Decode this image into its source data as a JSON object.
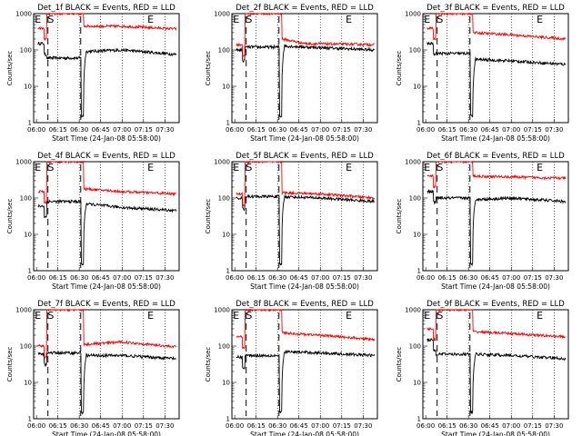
{
  "chart_data": [
    {
      "type": "line",
      "title": "Det_1f BLACK = Events, RED = LLD",
      "xlabel": "Start Time (24-Jan-08 05:58:00)",
      "ylabel": "Counts/sec",
      "yscale": "log",
      "ylim": [
        1,
        1000
      ],
      "x_ticks": [
        "06:00",
        "06:15",
        "06:30",
        "06:45",
        "07:00",
        "07:15",
        "07:30"
      ],
      "y_ticks": [
        "1",
        "10",
        "100",
        "1000"
      ],
      "grid": "dotted vertical",
      "markers": [
        {
          "label": "E",
          "time": "06:01"
        },
        {
          "label": "S",
          "time": "06:10"
        },
        {
          "label": "E",
          "time": "07:20"
        }
      ],
      "series": [
        {
          "color": "#000000",
          "levels": [
            {
              "t": "06:01",
              "v": 150
            },
            {
              "t": "06:07",
              "v": 60
            },
            {
              "t": "06:33",
              "v": 90
            },
            {
              "t": "07:00",
              "v": 100
            },
            {
              "t": "07:38",
              "v": 75
            }
          ]
        },
        {
          "color": "#ff0000",
          "levels": [
            {
              "t": "06:01",
              "v": 400
            },
            {
              "t": "06:07",
              "v": 1000
            },
            {
              "t": "06:33",
              "v": 450
            },
            {
              "t": "07:00",
              "v": 450
            },
            {
              "t": "07:38",
              "v": 380
            }
          ]
        }
      ]
    },
    {
      "type": "line",
      "title": "Det_2f BLACK = Events, RED = LLD",
      "xlabel": "Start Time (24-Jan-08 05:58:00)",
      "ylabel": "Counts/sec",
      "yscale": "log",
      "ylim": [
        1,
        1000
      ],
      "x_ticks": [
        "06:00",
        "06:15",
        "06:30",
        "06:45",
        "07:00",
        "07:15",
        "07:30"
      ],
      "y_ticks": [
        "1",
        "10",
        "100",
        "1000"
      ],
      "grid": "dotted vertical",
      "markers": [
        {
          "label": "E",
          "time": "06:01"
        },
        {
          "label": "S",
          "time": "06:10"
        },
        {
          "label": "E",
          "time": "07:20"
        }
      ],
      "series": [
        {
          "color": "#000000",
          "levels": [
            {
              "t": "06:01",
              "v": 100
            },
            {
              "t": "06:07",
              "v": 120
            },
            {
              "t": "06:33",
              "v": 130
            },
            {
              "t": "06:50",
              "v": 120
            },
            {
              "t": "07:38",
              "v": 100
            }
          ]
        },
        {
          "color": "#ff0000",
          "levels": [
            {
              "t": "06:01",
              "v": 140
            },
            {
              "t": "06:07",
              "v": 1000
            },
            {
              "t": "06:33",
              "v": 200
            },
            {
              "t": "06:50",
              "v": 150
            },
            {
              "t": "07:38",
              "v": 140
            }
          ]
        }
      ]
    },
    {
      "type": "line",
      "title": "Det_3f BLACK = Events, RED = LLD",
      "xlabel": "Start Time (24-Jan-08 05:58:00)",
      "ylabel": "Counts/sec",
      "yscale": "log",
      "ylim": [
        1,
        1000
      ],
      "x_ticks": [
        "06:00",
        "06:15",
        "06:30",
        "06:45",
        "07:00",
        "07:15",
        "07:30"
      ],
      "y_ticks": [
        "1",
        "10",
        "100",
        "1000"
      ],
      "grid": "dotted vertical",
      "markers": [
        {
          "label": "E",
          "time": "06:01"
        },
        {
          "label": "S",
          "time": "06:10"
        },
        {
          "label": "E",
          "time": "07:20"
        }
      ],
      "series": [
        {
          "color": "#000000",
          "levels": [
            {
              "t": "06:01",
              "v": 150
            },
            {
              "t": "06:07",
              "v": 80
            },
            {
              "t": "06:33",
              "v": 55
            },
            {
              "t": "07:00",
              "v": 50
            },
            {
              "t": "07:38",
              "v": 40
            }
          ]
        },
        {
          "color": "#ff0000",
          "levels": [
            {
              "t": "06:01",
              "v": 400
            },
            {
              "t": "06:07",
              "v": 1000
            },
            {
              "t": "06:33",
              "v": 300
            },
            {
              "t": "07:00",
              "v": 260
            },
            {
              "t": "07:38",
              "v": 200
            }
          ]
        }
      ]
    },
    {
      "type": "line",
      "title": "Det_4f BLACK = Events, RED = LLD",
      "xlabel": "Start Time (24-Jan-08 05:58:00)",
      "ylabel": "Counts/sec",
      "yscale": "log",
      "ylim": [
        1,
        1000
      ],
      "x_ticks": [
        "06:00",
        "06:15",
        "06:30",
        "06:45",
        "07:00",
        "07:15",
        "07:30"
      ],
      "y_ticks": [
        "1",
        "10",
        "100",
        "1000"
      ],
      "grid": "dotted vertical",
      "markers": [
        {
          "label": "E",
          "time": "06:01"
        },
        {
          "label": "S",
          "time": "06:10"
        },
        {
          "label": "E",
          "time": "07:20"
        }
      ],
      "series": [
        {
          "color": "#000000",
          "levels": [
            {
              "t": "06:01",
              "v": 60
            },
            {
              "t": "06:07",
              "v": 80
            },
            {
              "t": "06:33",
              "v": 70
            },
            {
              "t": "07:00",
              "v": 55
            },
            {
              "t": "07:38",
              "v": 45
            }
          ]
        },
        {
          "color": "#ff0000",
          "levels": [
            {
              "t": "06:01",
              "v": 150
            },
            {
              "t": "06:07",
              "v": 1000
            },
            {
              "t": "06:33",
              "v": 180
            },
            {
              "t": "07:00",
              "v": 150
            },
            {
              "t": "07:38",
              "v": 130
            }
          ]
        }
      ]
    },
    {
      "type": "line",
      "title": "Det_5f BLACK = Events, RED = LLD",
      "xlabel": "Start Time (24-Jan-08 05:58:00)",
      "ylabel": "Counts/sec",
      "yscale": "log",
      "ylim": [
        1,
        1000
      ],
      "x_ticks": [
        "06:00",
        "06:15",
        "06:30",
        "06:45",
        "07:00",
        "07:15",
        "07:30"
      ],
      "y_ticks": [
        "1",
        "10",
        "100",
        "1000"
      ],
      "grid": "dotted vertical",
      "markers": [
        {
          "label": "E",
          "time": "06:01"
        },
        {
          "label": "S",
          "time": "06:10"
        },
        {
          "label": "E",
          "time": "07:20"
        }
      ],
      "series": [
        {
          "color": "#000000",
          "levels": [
            {
              "t": "06:01",
              "v": 100
            },
            {
              "t": "06:07",
              "v": 110
            },
            {
              "t": "06:33",
              "v": 110
            },
            {
              "t": "07:00",
              "v": 100
            },
            {
              "t": "07:38",
              "v": 80
            }
          ]
        },
        {
          "color": "#ff0000",
          "levels": [
            {
              "t": "06:01",
              "v": 130
            },
            {
              "t": "06:07",
              "v": 1000
            },
            {
              "t": "06:33",
              "v": 140
            },
            {
              "t": "07:00",
              "v": 130
            },
            {
              "t": "07:38",
              "v": 100
            }
          ]
        }
      ]
    },
    {
      "type": "line",
      "title": "Det_6f BLACK = Events, RED = LLD",
      "xlabel": "Start Time (24-Jan-08 05:58:00)",
      "ylabel": "Counts/sec",
      "yscale": "log",
      "ylim": [
        1,
        1000
      ],
      "x_ticks": [
        "06:00",
        "06:15",
        "06:30",
        "06:45",
        "07:00",
        "07:15",
        "07:30"
      ],
      "y_ticks": [
        "1",
        "10",
        "100",
        "1000"
      ],
      "grid": "dotted vertical",
      "markers": [
        {
          "label": "E",
          "time": "06:01"
        },
        {
          "label": "S",
          "time": "06:10"
        },
        {
          "label": "E",
          "time": "07:20"
        }
      ],
      "series": [
        {
          "color": "#000000",
          "levels": [
            {
              "t": "06:01",
              "v": 150
            },
            {
              "t": "06:07",
              "v": 100
            },
            {
              "t": "06:33",
              "v": 90
            },
            {
              "t": "07:00",
              "v": 100
            },
            {
              "t": "07:38",
              "v": 80
            }
          ]
        },
        {
          "color": "#ff0000",
          "levels": [
            {
              "t": "06:01",
              "v": 400
            },
            {
              "t": "06:07",
              "v": 1000
            },
            {
              "t": "06:33",
              "v": 400
            },
            {
              "t": "07:00",
              "v": 380
            },
            {
              "t": "07:38",
              "v": 350
            }
          ]
        }
      ]
    },
    {
      "type": "line",
      "title": "Det_7f BLACK = Events, RED = LLD",
      "xlabel": "Start Time (24-Jan-08 05:58:00)",
      "ylabel": "Counts/sec",
      "yscale": "log",
      "ylim": [
        1,
        1000
      ],
      "x_ticks": [
        "06:00",
        "06:15",
        "06:30",
        "06:45",
        "07:00",
        "07:15",
        "07:30"
      ],
      "y_ticks": [
        "1",
        "10",
        "100",
        "1000"
      ],
      "grid": "dotted vertical",
      "markers": [
        {
          "label": "E",
          "time": "06:01"
        },
        {
          "label": "S",
          "time": "06:10"
        },
        {
          "label": "E",
          "time": "07:20"
        }
      ],
      "series": [
        {
          "color": "#000000",
          "levels": [
            {
              "t": "06:01",
              "v": 60
            },
            {
              "t": "06:07",
              "v": 65
            },
            {
              "t": "06:33",
              "v": 55
            },
            {
              "t": "07:00",
              "v": 55
            },
            {
              "t": "07:38",
              "v": 45
            }
          ]
        },
        {
          "color": "#ff0000",
          "levels": [
            {
              "t": "06:01",
              "v": 100
            },
            {
              "t": "06:07",
              "v": 1000
            },
            {
              "t": "06:33",
              "v": 110
            },
            {
              "t": "07:00",
              "v": 130
            },
            {
              "t": "07:38",
              "v": 95
            }
          ]
        }
      ]
    },
    {
      "type": "line",
      "title": "Det_8f BLACK = Events, RED = LLD",
      "xlabel": "Start Time (24-Jan-08 05:58:00)",
      "ylabel": "Counts/sec",
      "yscale": "log",
      "ylim": [
        1,
        1000
      ],
      "x_ticks": [
        "06:00",
        "06:15",
        "06:30",
        "06:45",
        "07:00",
        "07:15",
        "07:30"
      ],
      "y_ticks": [
        "1",
        "10",
        "100",
        "1000"
      ],
      "grid": "dotted vertical",
      "markers": [
        {
          "label": "E",
          "time": "06:01"
        },
        {
          "label": "S",
          "time": "06:10"
        },
        {
          "label": "E",
          "time": "07:20"
        }
      ],
      "series": [
        {
          "color": "#000000",
          "levels": [
            {
              "t": "06:01",
              "v": 50
            },
            {
              "t": "06:07",
              "v": 55
            },
            {
              "t": "06:33",
              "v": 70
            },
            {
              "t": "07:00",
              "v": 65
            },
            {
              "t": "07:38",
              "v": 55
            }
          ]
        },
        {
          "color": "#ff0000",
          "levels": [
            {
              "t": "06:01",
              "v": 180
            },
            {
              "t": "06:07",
              "v": 1000
            },
            {
              "t": "06:33",
              "v": 230
            },
            {
              "t": "07:00",
              "v": 200
            },
            {
              "t": "07:38",
              "v": 150
            }
          ]
        }
      ]
    },
    {
      "type": "line",
      "title": "Det_9f BLACK = Events, RED = LLD",
      "xlabel": "Start Time (24-Jan-08 05:58:00)",
      "ylabel": "Counts/sec",
      "yscale": "log",
      "ylim": [
        1,
        1000
      ],
      "x_ticks": [
        "06:00",
        "06:15",
        "06:30",
        "06:45",
        "07:00",
        "07:15",
        "07:30"
      ],
      "y_ticks": [
        "1",
        "10",
        "100",
        "1000"
      ],
      "grid": "dotted vertical",
      "markers": [
        {
          "label": "E",
          "time": "06:01"
        },
        {
          "label": "S",
          "time": "06:10"
        },
        {
          "label": "E",
          "time": "07:20"
        }
      ],
      "series": [
        {
          "color": "#000000",
          "levels": [
            {
              "t": "06:01",
              "v": 150
            },
            {
              "t": "06:07",
              "v": 60
            },
            {
              "t": "06:33",
              "v": 60
            },
            {
              "t": "07:00",
              "v": 55
            },
            {
              "t": "07:38",
              "v": 45
            }
          ]
        },
        {
          "color": "#ff0000",
          "levels": [
            {
              "t": "06:01",
              "v": 300
            },
            {
              "t": "06:07",
              "v": 1000
            },
            {
              "t": "06:33",
              "v": 250
            },
            {
              "t": "07:00",
              "v": 220
            },
            {
              "t": "07:38",
              "v": 180
            }
          ]
        }
      ]
    }
  ]
}
